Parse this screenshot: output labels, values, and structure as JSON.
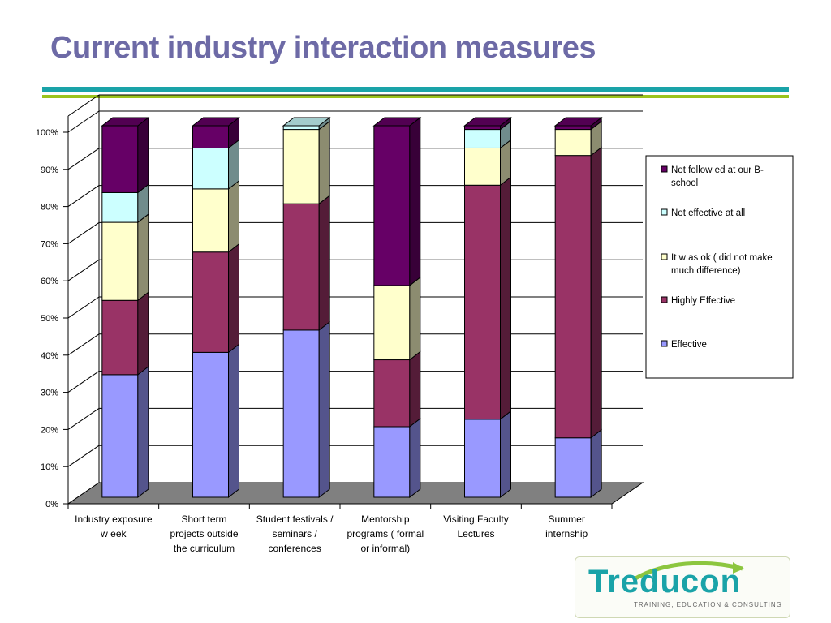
{
  "slide": {
    "title": "Current industry interaction measures"
  },
  "logo": {
    "word": "Treducon",
    "tagline": "TRAINING, EDUCATION & CONSULTING"
  },
  "colors": {
    "title": "#6d6aa6",
    "rule_teal": "#1aa3a8",
    "rule_green": "#9bc31c"
  },
  "chart_data": {
    "type": "bar",
    "stacked": true,
    "three_d": true,
    "percent_axis": true,
    "ylim": [
      0,
      100
    ],
    "yticks": [
      "0%",
      "10%",
      "20%",
      "30%",
      "40%",
      "50%",
      "60%",
      "70%",
      "80%",
      "90%",
      "100%"
    ],
    "grid": true,
    "legend_position": "right",
    "categories": [
      [
        "Industry exposure",
        "w eek"
      ],
      [
        "Short term",
        "projects outside",
        "the curriculum"
      ],
      [
        "Student festivals /",
        "seminars /",
        "conferences"
      ],
      [
        "Mentorship",
        "programs ( formal",
        "or informal)"
      ],
      [
        "Visiting Faculty",
        "Lectures"
      ],
      [
        "Summer",
        "internship"
      ]
    ],
    "series": [
      {
        "name": "Effective",
        "color": "#9999ff",
        "values": [
          33,
          39,
          45,
          19,
          21,
          16
        ]
      },
      {
        "name": "Highly Effective",
        "color": "#993366",
        "values": [
          20,
          27,
          34,
          18,
          63,
          76
        ]
      },
      {
        "name": "It w as ok ( did not make much difference)",
        "color": "#ffffcc",
        "values": [
          21,
          17,
          20,
          20,
          10,
          7
        ]
      },
      {
        "name": "Not effective at all",
        "color": "#ccffff",
        "values": [
          8,
          11,
          1,
          0,
          5,
          0
        ]
      },
      {
        "name": "Not follow ed at our B-school",
        "color": "#660066",
        "values": [
          18,
          6,
          0,
          43,
          1,
          1
        ]
      }
    ],
    "legend_order": [
      4,
      3,
      2,
      1,
      0
    ],
    "legend_lines": [
      [
        "Not follow ed at our B-",
        "school"
      ],
      [
        "Not effective at all"
      ],
      [
        "It w as ok ( did not make",
        "much difference)"
      ],
      [
        "Highly Effective"
      ],
      [
        "Effective"
      ]
    ]
  }
}
